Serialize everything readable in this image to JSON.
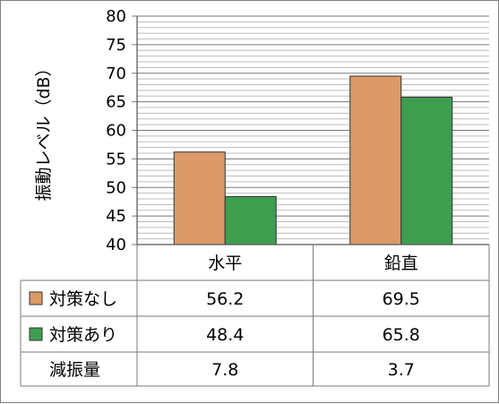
{
  "chart_data": {
    "type": "bar",
    "ylabel": "振動レベル（dB）",
    "ylim": [
      40,
      80
    ],
    "yticks": [
      40,
      45,
      50,
      55,
      60,
      65,
      70,
      75,
      80
    ],
    "minor_grid_step": 1,
    "grid": true,
    "categories": [
      "水平",
      "鉛直"
    ],
    "series": [
      {
        "name": "対策なし",
        "values": [
          56.2,
          69.5
        ],
        "color": "#db9a68"
      },
      {
        "name": "対策あり",
        "values": [
          48.4,
          65.8
        ],
        "color": "#3e9e4f"
      }
    ],
    "table": {
      "row_labels": [
        "対策なし",
        "対策あり",
        "減振量"
      ],
      "rows": [
        [
          "56.2",
          "69.5"
        ],
        [
          "48.4",
          "65.8"
        ],
        [
          "7.8",
          "3.7"
        ]
      ]
    }
  }
}
